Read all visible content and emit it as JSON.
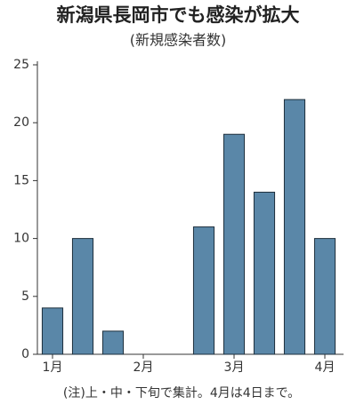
{
  "chart_data": {
    "type": "bar",
    "title": "新潟県長岡市でも感染が拡大",
    "subtitle": "(新規感染者数)",
    "categories": [
      "1月",
      null,
      null,
      "2月",
      null,
      null,
      "3月",
      null,
      null,
      "4月"
    ],
    "values": [
      4,
      10,
      2,
      0,
      0,
      11,
      19,
      14,
      22,
      10
    ],
    "color": "#5a87a8",
    "ylim": [
      0,
      25
    ],
    "yticks": [
      0,
      5,
      10,
      15,
      20,
      25
    ],
    "grid": false,
    "note": "(注)上・中・下旬で集計。4月は4日まで。"
  }
}
